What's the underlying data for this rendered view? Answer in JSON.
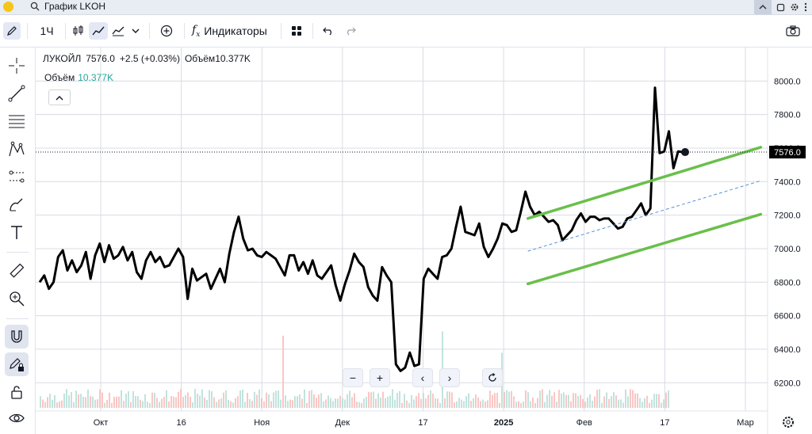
{
  "titlebar": {
    "search_text": "График LKOH"
  },
  "toolbar": {
    "interval": "1Ч",
    "indicators_label": "Индикаторы"
  },
  "legend": {
    "name": "ЛУКОЙЛ",
    "price": "7576.0",
    "change": "+2.5 (+0.03%)",
    "volume_label": "Объём",
    "volume_value": "10.377K"
  },
  "volume_legend": {
    "label": "Объём",
    "value": "10.377K"
  },
  "colors": {
    "line": "#000000",
    "channel": "#6abf4b",
    "midline": "#5b8fd6",
    "price_label_bg": "#000000",
    "volume_up": "#f7b9b5",
    "volume_down": "#b3dcd5"
  },
  "icons": [
    "pencil-icon",
    "candles-icon",
    "line-chart-icon",
    "area-chart-icon",
    "chevron-down-icon",
    "plus-circle-icon",
    "fx-icon",
    "grid-icon",
    "undo-icon",
    "redo-icon",
    "camera-icon",
    "crosshair-icon",
    "trendline-icon",
    "fib-icon",
    "pattern-icon",
    "ruler-icon",
    "zoom-icon",
    "magnet-icon",
    "lock-drawing-icon",
    "lock-icon",
    "eye-icon",
    "settings-icon"
  ],
  "chart_data": {
    "type": "line",
    "symbol": "LKOH",
    "y_ticks": [
      6200.0,
      6400.0,
      6600.0,
      6800.0,
      7000.0,
      7200.0,
      7400.0,
      7600.0,
      7800.0,
      8000.0
    ],
    "ylim": [
      6050,
      8200
    ],
    "x_ticks": [
      {
        "label": "Окт",
        "bold": false
      },
      {
        "label": "16",
        "bold": false
      },
      {
        "label": "Ноя",
        "bold": false
      },
      {
        "label": "Дек",
        "bold": false
      },
      {
        "label": "17",
        "bold": false
      },
      {
        "label": "2025",
        "bold": true
      },
      {
        "label": "Фев",
        "bold": false
      },
      {
        "label": "17",
        "bold": false
      },
      {
        "label": "Мар",
        "bold": false
      }
    ],
    "last_price": "7576.0",
    "last_price_value": 7576,
    "series": [
      {
        "values": [
          6800,
          6840,
          6760,
          6800,
          6950,
          6990,
          6870,
          6930,
          6860,
          6900,
          6980,
          6820,
          6960,
          7030,
          6920,
          7020,
          6940,
          6960,
          7010,
          6930,
          6980,
          6860,
          6820,
          6930,
          6980,
          6920,
          6950,
          6890,
          6900,
          6950,
          7000,
          6950,
          6700,
          6880,
          6810,
          6830,
          6850,
          6760,
          6820,
          6880,
          6800,
          6970,
          7100,
          7190,
          7060,
          6990,
          7000,
          6960,
          6950,
          6980,
          6960,
          6940,
          6890,
          6840,
          6960,
          6960,
          6870,
          6920,
          6850,
          6930,
          6840,
          6820,
          6860,
          6900,
          6780,
          6690,
          6790,
          6870,
          6970,
          6920,
          6890,
          6770,
          6720,
          6690,
          6890,
          6840,
          6800,
          6310,
          6270,
          6290,
          6380,
          6300,
          6310,
          6820,
          6880,
          6850,
          6820,
          6950,
          6960,
          7000,
          7130,
          7250,
          7100,
          7090,
          7080,
          7150,
          7010,
          6950,
          7000,
          7060,
          7150,
          7140,
          7100,
          7110,
          7220,
          7340,
          7250,
          7200,
          7220,
          7190,
          7160,
          7170,
          7140,
          7050,
          7080,
          7110,
          7170,
          7210,
          7160,
          7190,
          7190,
          7170,
          7180,
          7180,
          7150,
          7120,
          7130,
          7180,
          7190,
          7230,
          7270,
          7200,
          7240,
          7960,
          7570,
          7580,
          7700,
          7480,
          7580,
          7576
        ]
      }
    ],
    "channel": {
      "upper": [
        [
          0.634,
          7180
        ],
        [
          0.934,
          7605
        ]
      ],
      "lower": [
        [
          0.634,
          6790
        ],
        [
          0.934,
          7205
        ]
      ],
      "mid": [
        [
          0.634,
          6985
        ],
        [
          0.934,
          7405
        ]
      ]
    }
  }
}
